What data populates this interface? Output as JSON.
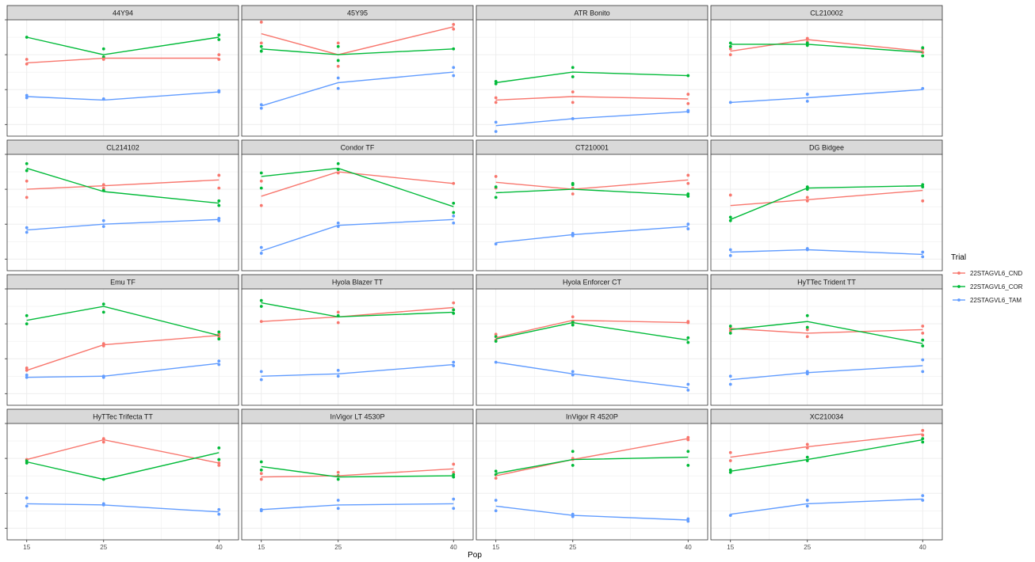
{
  "chart_data": {
    "type": "line",
    "xlabel": "Pop",
    "x_ticks": [
      "15",
      "25",
      "40"
    ],
    "x": [
      15,
      25,
      40
    ],
    "legend": {
      "title": "Trial",
      "position": "right",
      "entries": [
        {
          "name": "22STAGVL6_CND",
          "color": "#F8766D"
        },
        {
          "name": "22STAGVL6_COR",
          "color": "#00BA38"
        },
        {
          "name": "22STAGVL6_TAM",
          "color": "#619CFF"
        }
      ]
    },
    "y_scale": "relative (0–1 of panel); y tick labels not legible",
    "ylim": [
      0,
      1
    ],
    "grid": true,
    "panels": [
      {
        "title": "44Y94",
        "lines": {
          "CND": [
            0.63,
            0.67,
            0.67
          ],
          "COR": [
            0.85,
            0.7,
            0.85
          ],
          "TAM": [
            0.34,
            0.31,
            0.38
          ]
        },
        "points": {
          "CND": [
            [
              0.62,
              0.66
            ],
            [
              0.68,
              0.66
            ],
            [
              0.66,
              0.7
            ]
          ],
          "COR": [
            [
              0.85
            ],
            [
              0.75,
              0.68
            ],
            [
              0.83,
              0.87
            ]
          ],
          "TAM": [
            [
              0.33,
              0.35
            ],
            [
              0.32
            ],
            [
              0.38,
              0.39
            ]
          ]
        }
      },
      {
        "title": "45Y95",
        "lines": {
          "CND": [
            0.88,
            0.7,
            0.94
          ],
          "COR": [
            0.75,
            0.7,
            0.75
          ],
          "TAM": [
            0.26,
            0.46,
            0.55
          ]
        },
        "points": {
          "CND": [
            [
              0.98,
              0.8
            ],
            [
              0.8,
              0.6
            ],
            [
              0.92,
              0.96
            ]
          ],
          "COR": [
            [
              0.77,
              0.73
            ],
            [
              0.77,
              0.65
            ],
            [
              0.75
            ]
          ],
          "TAM": [
            [
              0.27,
              0.24
            ],
            [
              0.5,
              0.41
            ],
            [
              0.59,
              0.52
            ]
          ]
        }
      },
      {
        "title": "ATR Bonito",
        "lines": {
          "CND": [
            0.31,
            0.34,
            0.32
          ],
          "COR": [
            0.46,
            0.55,
            0.52
          ],
          "TAM": [
            0.09,
            0.15,
            0.21
          ]
        },
        "points": {
          "CND": [
            [
              0.33,
              0.29
            ],
            [
              0.38,
              0.29
            ],
            [
              0.36,
              0.28
            ]
          ],
          "COR": [
            [
              0.45,
              0.47
            ],
            [
              0.59,
              0.51
            ],
            [
              0.52
            ]
          ],
          "TAM": [
            [
              0.12,
              0.04
            ],
            [
              0.15
            ],
            [
              0.22,
              0.21
            ]
          ]
        }
      },
      {
        "title": "CL210002",
        "lines": {
          "CND": [
            0.73,
            0.83,
            0.73
          ],
          "COR": [
            0.79,
            0.79,
            0.72
          ],
          "TAM": [
            0.29,
            0.33,
            0.4
          ]
        },
        "points": {
          "CND": [
            [
              0.75,
              0.7
            ],
            [
              0.84,
              0.81
            ],
            [
              0.75,
              0.72
            ]
          ],
          "COR": [
            [
              0.8,
              0.77
            ],
            [
              0.8,
              0.78
            ],
            [
              0.76,
              0.69
            ]
          ],
          "TAM": [
            [
              0.29
            ],
            [
              0.36,
              0.3
            ],
            [
              0.41
            ]
          ]
        }
      },
      {
        "title": "CL214102",
        "lines": {
          "CND": [
            0.7,
            0.73,
            0.78
          ],
          "COR": [
            0.88,
            0.68,
            0.58
          ],
          "TAM": [
            0.35,
            0.4,
            0.44
          ]
        },
        "points": {
          "CND": [
            [
              0.77,
              0.63
            ],
            [
              0.74,
              0.71
            ],
            [
              0.82,
              0.71
            ]
          ],
          "COR": [
            [
              0.92,
              0.86
            ],
            [
              0.69
            ],
            [
              0.6,
              0.56
            ]
          ],
          "TAM": [
            [
              0.37,
              0.33
            ],
            [
              0.43,
              0.38
            ],
            [
              0.45,
              0.43
            ]
          ]
        }
      },
      {
        "title": "Condor TF",
        "lines": {
          "CND": [
            0.64,
            0.85,
            0.75
          ],
          "COR": [
            0.81,
            0.88,
            0.55
          ],
          "TAM": [
            0.17,
            0.39,
            0.44
          ]
        },
        "points": {
          "CND": [
            [
              0.56,
              0.77
            ],
            [
              0.87,
              0.84
            ],
            [
              0.75
            ]
          ],
          "COR": [
            [
              0.84,
              0.71
            ],
            [
              0.92,
              0.87
            ],
            [
              0.58,
              0.5
            ]
          ],
          "TAM": [
            [
              0.2,
              0.15
            ],
            [
              0.41,
              0.38
            ],
            [
              0.47,
              0.41
            ]
          ]
        }
      },
      {
        "title": "CT210001",
        "lines": {
          "CND": [
            0.76,
            0.7,
            0.78
          ],
          "COR": [
            0.67,
            0.7,
            0.65
          ],
          "TAM": [
            0.24,
            0.31,
            0.38
          ]
        },
        "points": {
          "CND": [
            [
              0.81,
              0.71
            ],
            [
              0.71,
              0.66
            ],
            [
              0.82,
              0.75
            ]
          ],
          "COR": [
            [
              0.72,
              0.63
            ],
            [
              0.75,
              0.74
            ],
            [
              0.66,
              0.64
            ]
          ],
          "TAM": [
            [
              0.23
            ],
            [
              0.32,
              0.3
            ],
            [
              0.4,
              0.36
            ]
          ]
        }
      },
      {
        "title": "DG Bidgee",
        "lines": {
          "CND": [
            0.56,
            0.61,
            0.69
          ],
          "COR": [
            0.44,
            0.71,
            0.73
          ],
          "TAM": [
            0.16,
            0.18,
            0.14
          ]
        },
        "points": {
          "CND": [
            [
              0.65
            ],
            [
              0.6,
              0.63
            ],
            [
              0.6
            ]
          ],
          "COR": [
            [
              0.46,
              0.43
            ],
            [
              0.72,
              0.7
            ],
            [
              0.74,
              0.72
            ]
          ],
          "TAM": [
            [
              0.18,
              0.13
            ],
            [
              0.18,
              0.19
            ],
            [
              0.16,
              0.12
            ]
          ]
        }
      },
      {
        "title": "Emu TF",
        "lines": {
          "CND": [
            0.3,
            0.52,
            0.6
          ],
          "COR": [
            0.73,
            0.85,
            0.6
          ],
          "TAM": [
            0.24,
            0.25,
            0.36
          ]
        },
        "points": {
          "CND": [
            [
              0.3,
              0.32
            ],
            [
              0.53,
              0.51
            ],
            [
              0.61,
              0.59
            ]
          ],
          "COR": [
            [
              0.77,
              0.7
            ],
            [
              0.87,
              0.8
            ],
            [
              0.63,
              0.57
            ]
          ],
          "TAM": [
            [
              0.24,
              0.26
            ],
            [
              0.25,
              0.24
            ],
            [
              0.38,
              0.35
            ]
          ]
        }
      },
      {
        "title": "Hyola Blazer TT",
        "lines": {
          "CND": [
            0.72,
            0.76,
            0.84
          ],
          "COR": [
            0.88,
            0.76,
            0.8
          ],
          "TAM": [
            0.25,
            0.27,
            0.35
          ]
        },
        "points": {
          "CND": [
            [
              0.72
            ],
            [
              0.8,
              0.71
            ],
            [
              0.88,
              0.82
            ]
          ],
          "COR": [
            [
              0.9,
              0.85
            ],
            [
              0.77
            ],
            [
              0.82,
              0.79
            ]
          ],
          "TAM": [
            [
              0.29,
              0.22
            ],
            [
              0.3,
              0.25
            ],
            [
              0.37,
              0.34
            ]
          ]
        }
      },
      {
        "title": "Hyola Enforcer CT",
        "lines": {
          "CND": [
            0.58,
            0.73,
            0.71
          ],
          "COR": [
            0.57,
            0.71,
            0.56
          ],
          "TAM": [
            0.37,
            0.27,
            0.15
          ]
        },
        "points": {
          "CND": [
            [
              0.61,
              0.56
            ],
            [
              0.76,
              0.71
            ],
            [
              0.71,
              0.72
            ]
          ],
          "COR": [
            [
              0.59,
              0.55
            ],
            [
              0.72,
              0.69
            ],
            [
              0.58,
              0.54
            ]
          ],
          "TAM": [
            [
              0.37
            ],
            [
              0.29,
              0.26
            ],
            [
              0.18,
              0.13
            ]
          ]
        }
      },
      {
        "title": "HyTTec Trident TT",
        "lines": {
          "CND": [
            0.66,
            0.62,
            0.65
          ],
          "COR": [
            0.65,
            0.72,
            0.53
          ],
          "TAM": [
            0.22,
            0.28,
            0.34
          ]
        },
        "points": {
          "CND": [
            [
              0.66,
              0.64
            ],
            [
              0.65,
              0.59
            ],
            [
              0.68,
              0.62
            ]
          ],
          "COR": [
            [
              0.68,
              0.62
            ],
            [
              0.77,
              0.67
            ],
            [
              0.56,
              0.51
            ]
          ],
          "TAM": [
            [
              0.25,
              0.18
            ],
            [
              0.29,
              0.27
            ],
            [
              0.39,
              0.29
            ]
          ]
        }
      },
      {
        "title": "HyTTec Trifecta TT",
        "lines": {
          "CND": [
            0.69,
            0.86,
            0.66
          ],
          "COR": [
            0.67,
            0.52,
            0.75
          ],
          "TAM": [
            0.31,
            0.3,
            0.24
          ]
        },
        "points": {
          "CND": [
            [
              0.69,
              0.67
            ],
            [
              0.87,
              0.84
            ],
            [
              0.66,
              0.64
            ]
          ],
          "COR": [
            [
              0.68,
              0.66
            ],
            [
              0.52
            ],
            [
              0.79,
              0.69
            ]
          ],
          "TAM": [
            [
              0.36,
              0.29
            ],
            [
              0.31,
              0.3
            ],
            [
              0.26,
              0.22
            ]
          ]
        }
      },
      {
        "title": "InVigor LT 4530P",
        "lines": {
          "CND": [
            0.54,
            0.55,
            0.61
          ],
          "COR": [
            0.63,
            0.54,
            0.55
          ],
          "TAM": [
            0.26,
            0.3,
            0.31
          ]
        },
        "points": {
          "CND": [
            [
              0.57,
              0.52
            ],
            [
              0.58,
              0.55
            ],
            [
              0.65,
              0.58
            ]
          ],
          "COR": [
            [
              0.67,
              0.6
            ],
            [
              0.55,
              0.52
            ],
            [
              0.56,
              0.54
            ]
          ],
          "TAM": [
            [
              0.26,
              0.25
            ],
            [
              0.34,
              0.27
            ],
            [
              0.35,
              0.27
            ]
          ]
        }
      },
      {
        "title": "InVigor R 4520P",
        "lines": {
          "CND": [
            0.55,
            0.69,
            0.87
          ],
          "COR": [
            0.57,
            0.69,
            0.71
          ],
          "TAM": [
            0.29,
            0.21,
            0.17
          ]
        },
        "points": {
          "CND": [
            [
              0.56,
              0.53
            ],
            [
              0.69,
              0.7
            ],
            [
              0.88,
              0.86
            ]
          ],
          "COR": [
            [
              0.59,
              0.56
            ],
            [
              0.76,
              0.64
            ],
            [
              0.76,
              0.64
            ]
          ],
          "TAM": [
            [
              0.34,
              0.25
            ],
            [
              0.22,
              0.2
            ],
            [
              0.18,
              0.16
            ]
          ]
        }
      },
      {
        "title": "XC210034",
        "lines": {
          "CND": [
            0.71,
            0.8,
            0.91
          ],
          "COR": [
            0.59,
            0.69,
            0.86
          ],
          "TAM": [
            0.22,
            0.31,
            0.35
          ]
        },
        "points": {
          "CND": [
            [
              0.75,
              0.68
            ],
            [
              0.82,
              0.79
            ],
            [
              0.94,
              0.9
            ]
          ],
          "COR": [
            [
              0.6,
              0.58
            ],
            [
              0.71,
              0.68
            ],
            [
              0.87,
              0.84
            ]
          ],
          "TAM": [
            [
              0.21
            ],
            [
              0.34,
              0.29
            ],
            [
              0.38,
              0.34
            ]
          ]
        }
      }
    ]
  }
}
